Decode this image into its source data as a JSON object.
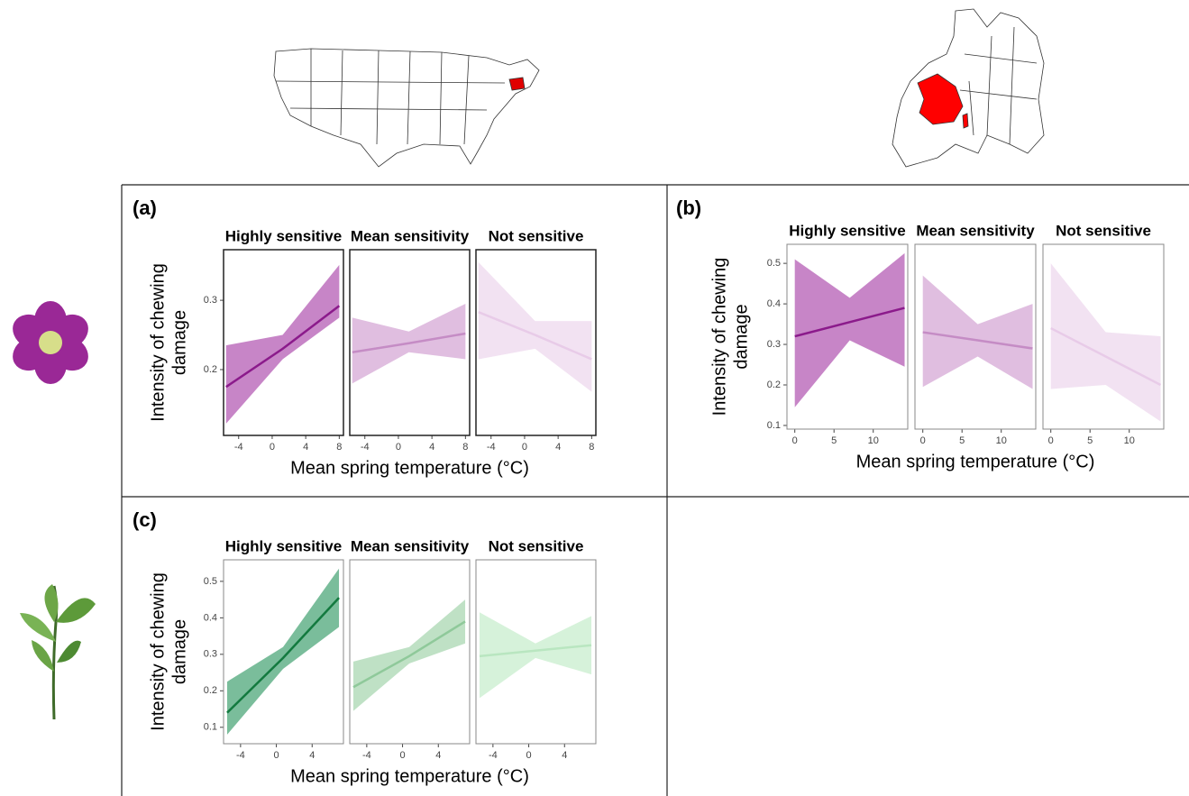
{
  "chart_data": [
    {
      "type": "line",
      "label": "(a)",
      "ylabel": [
        "Intensity of chewing",
        "damage"
      ],
      "xlabel": "Mean spring temperature (°C)",
      "xlim": [
        -5.8,
        8.5
      ],
      "xticks": [
        -4,
        0,
        4,
        8
      ],
      "ylim": [
        0.105,
        0.373
      ],
      "yticks": [
        0.2,
        0.3
      ],
      "facets": [
        {
          "title": "Highly sensitive",
          "color": "#8b1a8b",
          "band_color": "#b45cb4",
          "x": [
            -5.5,
            1.25,
            8
          ],
          "values": [
            0.175,
            0.23,
            0.292
          ],
          "lower": [
            0.122,
            0.215,
            0.275
          ],
          "upper": [
            0.235,
            0.25,
            0.351
          ]
        },
        {
          "title": "Mean sensitivity",
          "color": "#c58cc5",
          "band_color": "#d6a8d6",
          "x": [
            -5.5,
            1.25,
            8
          ],
          "values": [
            0.225,
            0.238,
            0.252
          ],
          "lower": [
            0.18,
            0.225,
            0.215
          ],
          "upper": [
            0.275,
            0.255,
            0.295
          ]
        },
        {
          "title": "Not sensitive",
          "color": "#e8cbe8",
          "band_color": "#eed8ee",
          "x": [
            -5.5,
            1.25,
            8
          ],
          "values": [
            0.283,
            0.25,
            0.215
          ],
          "lower": [
            0.215,
            0.23,
            0.168
          ],
          "upper": [
            0.355,
            0.27,
            0.27
          ]
        }
      ]
    },
    {
      "type": "line",
      "label": "(b)",
      "ylabel": [
        "Intensity of chewing",
        "damage"
      ],
      "xlabel": "Mean spring temperature (°C)",
      "xlim": [
        -1,
        14.4
      ],
      "xticks": [
        0,
        5,
        10
      ],
      "ylim": [
        0.091,
        0.547
      ],
      "yticks": [
        0.1,
        0.2,
        0.3,
        0.4,
        0.5
      ],
      "facets": [
        {
          "title": "Highly sensitive",
          "color": "#8b1a8b",
          "band_color": "#b45cb4",
          "x": [
            0,
            7,
            14
          ],
          "values": [
            0.32,
            0.355,
            0.39
          ],
          "lower": [
            0.145,
            0.31,
            0.245
          ],
          "upper": [
            0.51,
            0.415,
            0.525
          ]
        },
        {
          "title": "Mean sensitivity",
          "color": "#c58cc5",
          "band_color": "#d6a8d6",
          "x": [
            0,
            7,
            14
          ],
          "values": [
            0.33,
            0.31,
            0.29
          ],
          "lower": [
            0.195,
            0.27,
            0.19
          ],
          "upper": [
            0.47,
            0.35,
            0.4
          ]
        },
        {
          "title": "Not sensitive",
          "color": "#e8cbe8",
          "band_color": "#eed8ee",
          "x": [
            0,
            7,
            14
          ],
          "values": [
            0.34,
            0.27,
            0.2
          ],
          "lower": [
            0.19,
            0.2,
            0.11
          ],
          "upper": [
            0.5,
            0.33,
            0.32
          ]
        }
      ]
    },
    {
      "type": "line",
      "label": "(c)",
      "ylabel": [
        "Intensity of chewing",
        "damage"
      ],
      "xlabel": "Mean spring temperature (°C)",
      "xlim": [
        -5.9,
        7.5
      ],
      "xticks": [
        -4,
        0,
        4
      ],
      "ylim": [
        0.055,
        0.559
      ],
      "yticks": [
        0.1,
        0.2,
        0.3,
        0.4,
        0.5
      ],
      "facets": [
        {
          "title": "Highly sensitive",
          "color": "#137a3f",
          "band_color": "#4ea77a",
          "x": [
            -5.5,
            0.75,
            7
          ],
          "values": [
            0.14,
            0.29,
            0.455
          ],
          "lower": [
            0.08,
            0.26,
            0.375
          ],
          "upper": [
            0.225,
            0.32,
            0.535
          ]
        },
        {
          "title": "Mean sensitivity",
          "color": "#8fc99a",
          "band_color": "#a9d7b1",
          "x": [
            -5.5,
            0.75,
            7
          ],
          "values": [
            0.21,
            0.295,
            0.39
          ],
          "lower": [
            0.145,
            0.275,
            0.33
          ],
          "upper": [
            0.28,
            0.32,
            0.45
          ]
        },
        {
          "title": "Not sensitive",
          "color": "#b9e6c0",
          "band_color": "#c8edcd",
          "x": [
            -5.5,
            0.75,
            7
          ],
          "values": [
            0.295,
            0.31,
            0.325
          ],
          "lower": [
            0.18,
            0.29,
            0.245
          ],
          "upper": [
            0.415,
            0.33,
            0.405
          ]
        }
      ]
    }
  ]
}
